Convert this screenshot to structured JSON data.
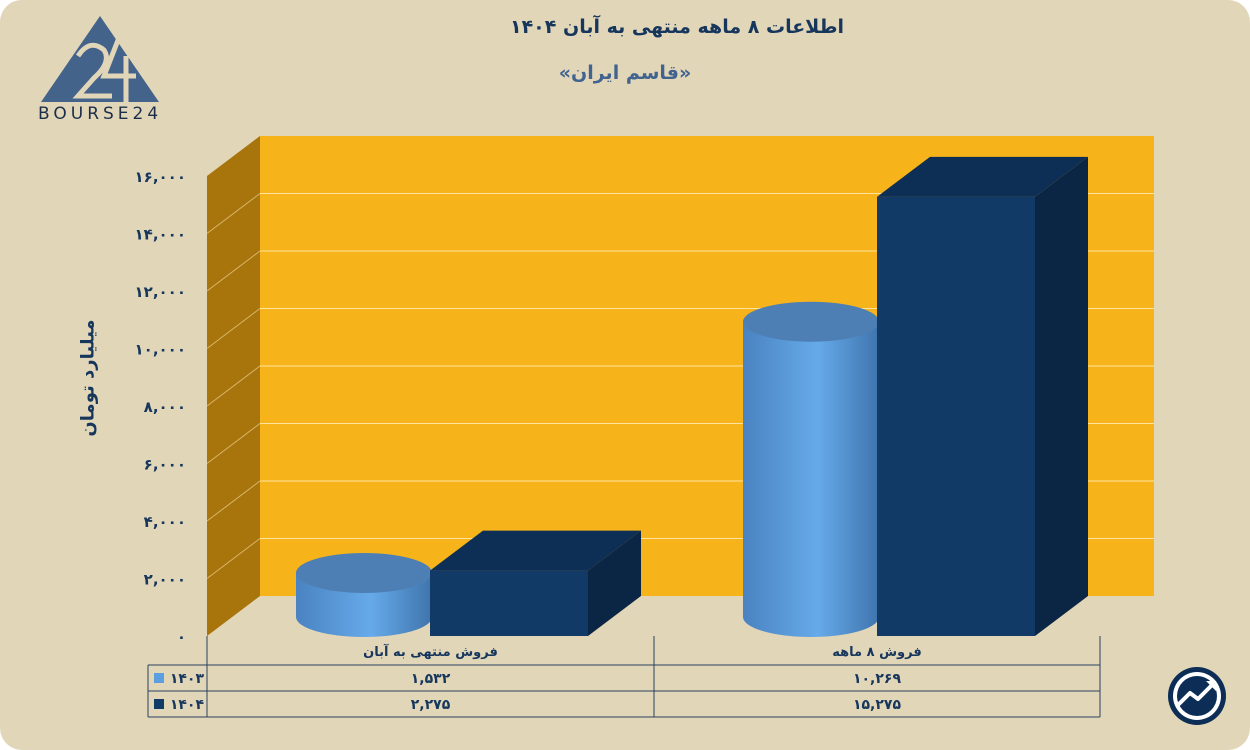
{
  "header": {
    "title": "اطلاعات ۸ ماهه منتهی به آبان ۱۴۰۴",
    "subtitle": "«قاسم ایران»"
  },
  "brand": {
    "logo_text": "BOURSE24"
  },
  "colors": {
    "background": "#e2d6b9",
    "plot_back_wall": "#f7b31a",
    "plot_side_wall": "#a8740c",
    "series_1403": "#5b9fe0",
    "series_1404": "#123a66",
    "text": "#16365c"
  },
  "chart_data": {
    "type": "bar",
    "categories": [
      "فروش منتهی به  آبان",
      "فروش  ۸  ماهه"
    ],
    "series": [
      {
        "name": "۱۴۰۳",
        "values": [
          1532,
          10269
        ],
        "shape": "cylinder",
        "color": "#5b9fe0",
        "value_labels": [
          "۱,۵۳۲",
          "۱۰,۲۶۹"
        ]
      },
      {
        "name": "۱۴۰۴",
        "values": [
          2275,
          15275
        ],
        "shape": "box",
        "color": "#123a66",
        "value_labels": [
          "۲,۲۷۵",
          "۱۵,۲۷۵"
        ]
      }
    ],
    "ylabel": "میلیارد تومان",
    "ylim": [
      0,
      16000
    ],
    "yticks": [
      0,
      2000,
      4000,
      6000,
      8000,
      10000,
      12000,
      14000,
      16000
    ],
    "ytick_labels": [
      "۰",
      "۲,۰۰۰",
      "۴,۰۰۰",
      "۶,۰۰۰",
      "۸,۰۰۰",
      "۱۰,۰۰۰",
      "۱۲,۰۰۰",
      "۱۴,۰۰۰",
      "۱۶,۰۰۰"
    ],
    "grid": true,
    "legend": "data-table"
  }
}
